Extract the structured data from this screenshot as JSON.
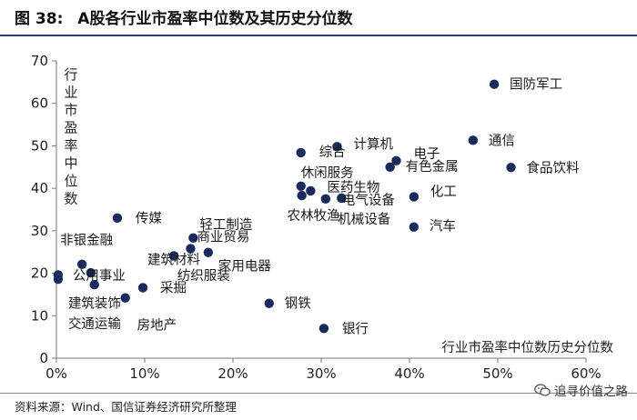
{
  "figure": {
    "label": "图 38:",
    "title": "A股各行业市盈率中位数及其历史分位数",
    "source": "资料来源：Wind、国信证券经济研究所整理",
    "watermark": "追寻价值之路"
  },
  "chart_data": {
    "type": "scatter",
    "xlabel": "行业市盈率中位数历史分位数",
    "ylabel": "行业市盈率中位数",
    "xlim": [
      0,
      60
    ],
    "ylim": [
      0,
      70
    ],
    "xticks": [
      "0%",
      "10%",
      "20%",
      "30%",
      "40%",
      "50%",
      "60%"
    ],
    "yticks": [
      "0",
      "10",
      "20",
      "30",
      "40",
      "50",
      "60",
      "70"
    ],
    "marker_color": "#1b2a5c",
    "points": [
      {
        "name": "国防军工",
        "x": 49.6,
        "y": 64.5
      },
      {
        "name": "通信",
        "x": 47.2,
        "y": 51.3
      },
      {
        "name": "食品饮料",
        "x": 51.5,
        "y": 44.9
      },
      {
        "name": "电子",
        "x": 38.5,
        "y": 46.5
      },
      {
        "name": "计算机",
        "x": 31.8,
        "y": 49.8
      },
      {
        "name": "综合",
        "x": 27.7,
        "y": 48.4
      },
      {
        "name": "有色金属",
        "x": 37.8,
        "y": 45.0
      },
      {
        "name": "休闲服务",
        "x": 27.7,
        "y": 40.5
      },
      {
        "name": "医药生物",
        "x": 28.8,
        "y": 39.4
      },
      {
        "name": "农林牧渔",
        "x": 27.8,
        "y": 38.3
      },
      {
        "name": "电气设备",
        "x": 30.5,
        "y": 37.5
      },
      {
        "name": "机械设备",
        "x": 32.3,
        "y": 37.7
      },
      {
        "name": "化工",
        "x": 40.5,
        "y": 38.0
      },
      {
        "name": "汽车",
        "x": 40.5,
        "y": 30.9
      },
      {
        "name": "传媒",
        "x": 6.9,
        "y": 33.0
      },
      {
        "name": "轻工制造",
        "x": 15.5,
        "y": 28.3
      },
      {
        "name": "商业贸易",
        "x": 15.2,
        "y": 25.8
      },
      {
        "name": "建筑材料",
        "x": 13.3,
        "y": 24.1
      },
      {
        "name": "家用电器",
        "x": 17.2,
        "y": 24.9
      },
      {
        "name": "非银金融",
        "x": 2.9,
        "y": 22.1
      },
      {
        "name": "公用事业",
        "x": 3.9,
        "y": 20.1
      },
      {
        "name": "建筑装饰",
        "x": 0.2,
        "y": 19.6
      },
      {
        "name": "交通运输",
        "x": 0.2,
        "y": 18.6
      },
      {
        "name": "纺织服装",
        "x": 4.3,
        "y": 17.3
      },
      {
        "name": "采掘",
        "x": 9.8,
        "y": 16.6
      },
      {
        "name": "房地产",
        "x": 7.8,
        "y": 14.2
      },
      {
        "name": "钢铁",
        "x": 24.1,
        "y": 12.9
      },
      {
        "name": "银行",
        "x": 30.3,
        "y": 7.0
      }
    ]
  }
}
